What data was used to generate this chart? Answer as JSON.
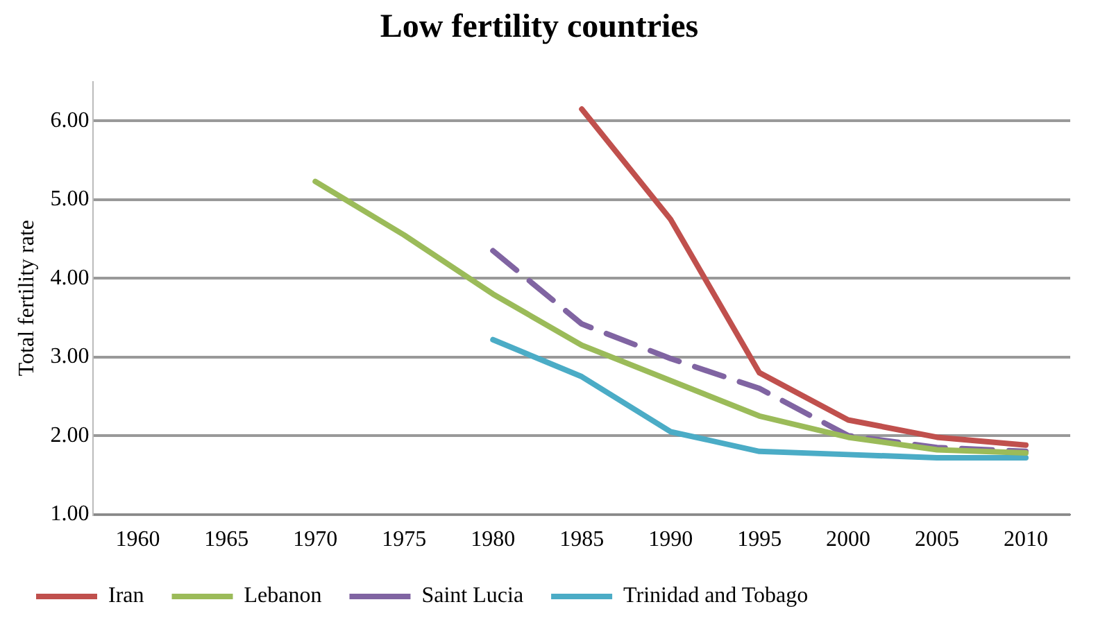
{
  "chart_data": {
    "type": "line",
    "title": "Low fertility countries",
    "ylabel": "Total fertility rate",
    "categories": [
      "1960",
      "1965",
      "1970",
      "1975",
      "1980",
      "1985",
      "1990",
      "1995",
      "2000",
      "2005",
      "2010"
    ],
    "series": [
      {
        "name": "Iran",
        "color": "#c0504d",
        "values": [
          null,
          null,
          null,
          null,
          null,
          6.15,
          4.75,
          2.8,
          2.2,
          1.98,
          1.88
        ]
      },
      {
        "name": "Lebanon",
        "color": "#9bbb59",
        "values": [
          null,
          null,
          5.23,
          4.55,
          3.8,
          3.15,
          2.7,
          2.25,
          1.98,
          1.82,
          1.78
        ]
      },
      {
        "name": "Saint Lucia",
        "color": "#8064a2",
        "line_style": "dashed",
        "values": [
          null,
          null,
          null,
          null,
          4.35,
          3.42,
          2.98,
          2.6,
          2.0,
          1.85,
          1.8
        ]
      },
      {
        "name": "Trinidad and Tobago",
        "color": "#4bacc6",
        "values": [
          null,
          null,
          null,
          null,
          3.22,
          2.75,
          2.05,
          1.8,
          1.76,
          1.72,
          1.72
        ]
      }
    ],
    "ylim": [
      1,
      6.5
    ],
    "yticks": [
      {
        "value": 1,
        "label": "1.00"
      },
      {
        "value": 2,
        "label": "2.00"
      },
      {
        "value": 3,
        "label": "3.00"
      },
      {
        "value": 4,
        "label": "4.00"
      },
      {
        "value": 5,
        "label": "5.00"
      },
      {
        "value": 6,
        "label": "6.00"
      }
    ],
    "grid": "y",
    "legend": "bottom",
    "marker": "none",
    "line_style": "solid"
  }
}
